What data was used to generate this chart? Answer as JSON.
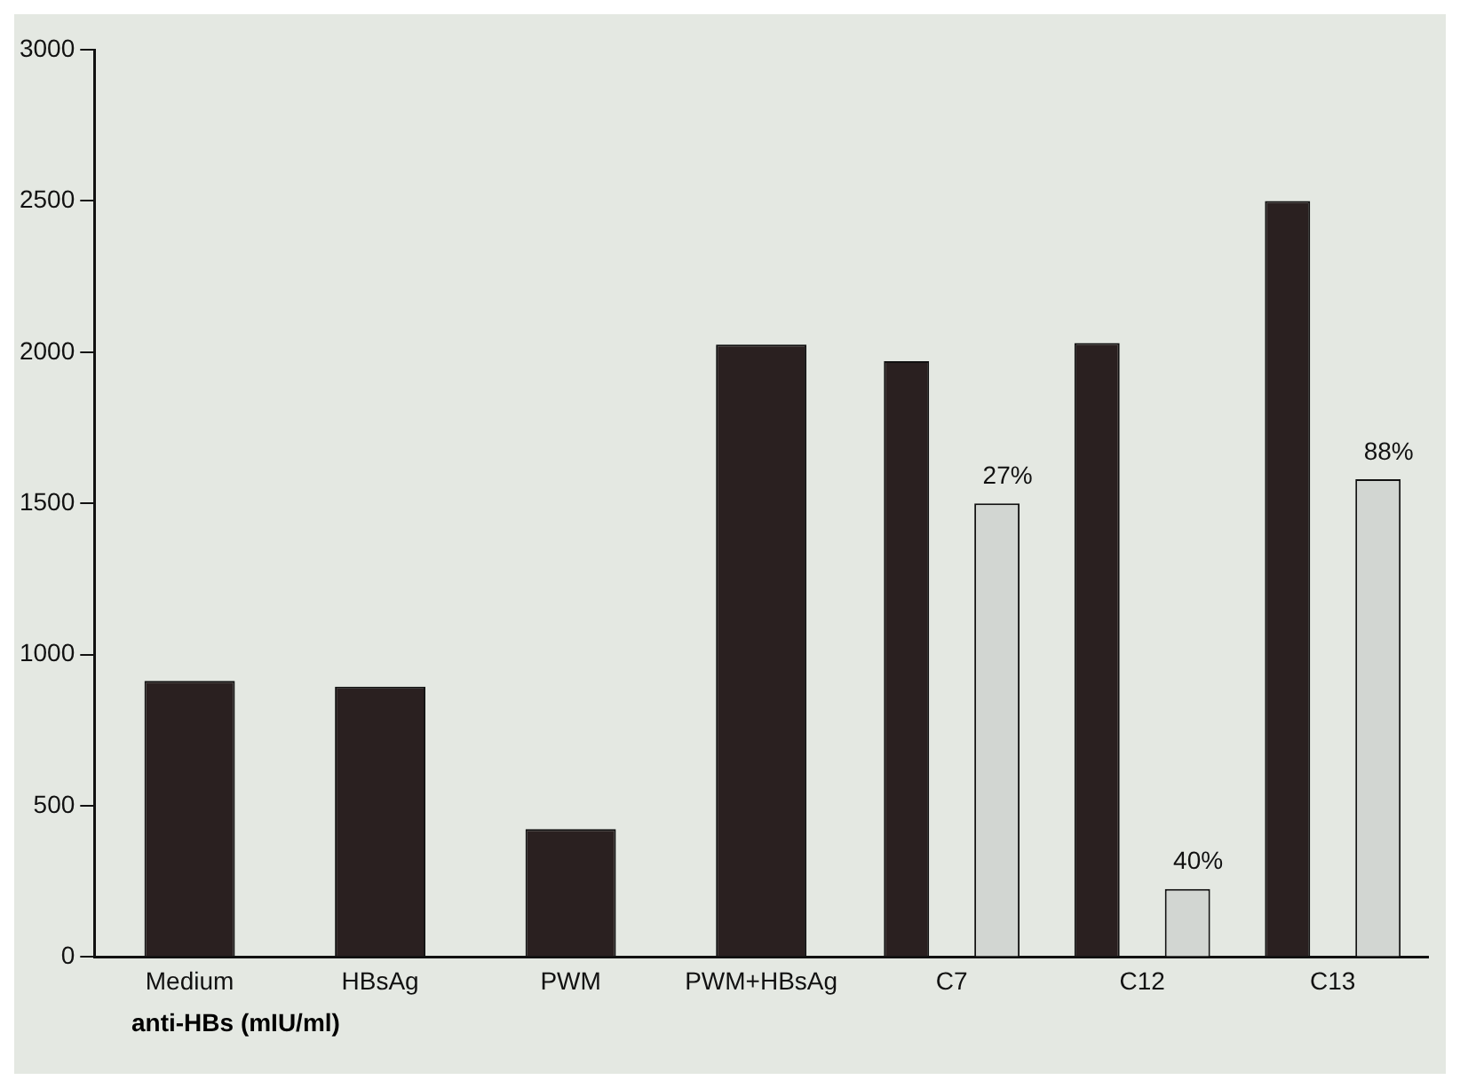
{
  "chart_data": {
    "type": "bar",
    "categories": [
      "Medium",
      "HBsAg",
      "PWM",
      "PWM+HBsAg",
      "C7",
      "C12",
      "C13"
    ],
    "series": [
      {
        "color": "#2a2020",
        "values": [
          913,
          894,
          423,
          2025,
          1970,
          2030,
          2500
        ]
      },
      {
        "color": "#d2d6d2",
        "values": [
          null,
          null,
          null,
          null,
          1500,
          225,
          1580
        ]
      }
    ],
    "annotations": [
      "27%",
      "40%",
      "88%",
      "anti-HBs (mIU/ml)"
    ],
    "ylim": [
      0,
      3000
    ],
    "yticks": [
      0,
      500,
      1000,
      1500,
      2000,
      2500,
      3000
    ],
    "grid": false,
    "legend": false
  }
}
